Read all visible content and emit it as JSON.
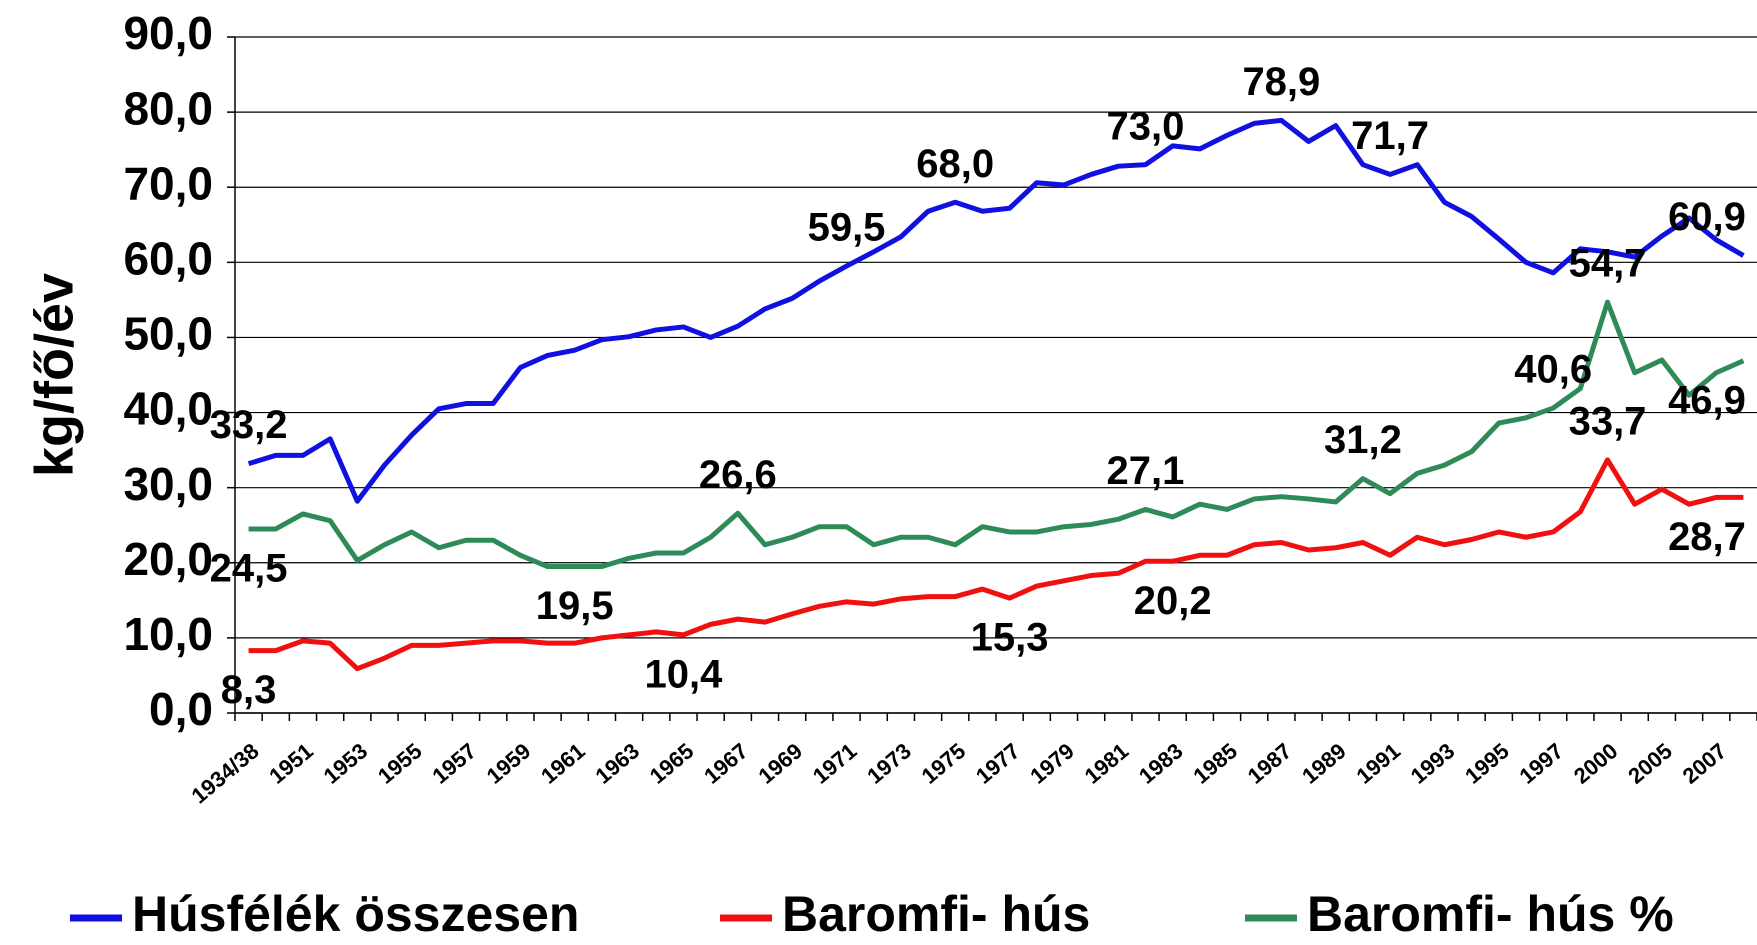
{
  "chart_data": {
    "type": "line",
    "y_label": "kg/fő/év",
    "categories": [
      "1934/38",
      null,
      "1951",
      null,
      "1953",
      null,
      "1955",
      null,
      "1957",
      null,
      "1959",
      null,
      "1961",
      null,
      "1963",
      null,
      "1965",
      null,
      "1967",
      null,
      "1969",
      null,
      "1971",
      null,
      "1973",
      null,
      "1975",
      null,
      "1977",
      null,
      "1979",
      null,
      "1981",
      null,
      "1983",
      null,
      "1985",
      null,
      "1987",
      null,
      "1989",
      null,
      "1991",
      null,
      "1993",
      null,
      "1995",
      null,
      "1997",
      null,
      "2000",
      null,
      "2005",
      null,
      "2007",
      null
    ],
    "ylim": [
      0,
      90
    ],
    "yticks": [
      {
        "value": 0,
        "label": "0,0"
      },
      {
        "value": 10,
        "label": "10,0"
      },
      {
        "value": 20,
        "label": "20,0"
      },
      {
        "value": 30,
        "label": "30,0"
      },
      {
        "value": 40,
        "label": "40,0"
      },
      {
        "value": 50,
        "label": "50,0"
      },
      {
        "value": 60,
        "label": "60,0"
      },
      {
        "value": 70,
        "label": "70,0"
      },
      {
        "value": 80,
        "label": "80,0"
      },
      {
        "value": 90,
        "label": "90,0"
      }
    ],
    "grid": true,
    "legend": "bottom",
    "series": [
      {
        "name": "Húsfélék összesen",
        "color": "#1010e0",
        "values": [
          33.2,
          34.3,
          34.3,
          36.5,
          28.2,
          33.0,
          37.0,
          40.5,
          41.2,
          41.2,
          46.0,
          47.6,
          48.3,
          49.7,
          50.1,
          51.0,
          51.4,
          50.0,
          51.5,
          53.8,
          55.2,
          57.5,
          59.5,
          61.4,
          63.4,
          66.8,
          68.0,
          66.8,
          67.2,
          70.6,
          70.3,
          71.7,
          72.8,
          73.0,
          75.5,
          75.1,
          76.9,
          78.5,
          78.9,
          76.1,
          78.2,
          73.0,
          71.7,
          73.0,
          68.0,
          66.1,
          63.1,
          60.0,
          58.6,
          61.8,
          61.4,
          60.7,
          63.5,
          65.9,
          63.0,
          60.9
        ],
        "value_labels": [
          "33,2",
          null,
          null,
          null,
          null,
          null,
          null,
          null,
          null,
          null,
          null,
          null,
          null,
          null,
          null,
          null,
          null,
          null,
          null,
          null,
          null,
          null,
          "59,5",
          null,
          null,
          null,
          "68,0",
          null,
          null,
          null,
          null,
          null,
          null,
          "73,0",
          null,
          null,
          null,
          null,
          "78,9",
          null,
          null,
          null,
          "71,7",
          null,
          null,
          null,
          null,
          null,
          null,
          null,
          null,
          null,
          null,
          null,
          null,
          "60,9"
        ]
      },
      {
        "name": "Baromfi- hús",
        "color": "#f01010",
        "values": [
          8.3,
          8.3,
          9.6,
          9.3,
          5.9,
          7.3,
          9.0,
          9.0,
          9.3,
          9.6,
          9.6,
          9.3,
          9.3,
          10.0,
          10.4,
          10.8,
          10.4,
          11.8,
          12.5,
          12.1,
          13.2,
          14.2,
          14.8,
          14.5,
          15.2,
          15.5,
          15.5,
          16.5,
          15.3,
          16.9,
          17.6,
          18.3,
          18.6,
          20.2,
          20.2,
          21.0,
          21.0,
          22.4,
          22.7,
          21.7,
          22.0,
          22.7,
          21.0,
          23.4,
          22.4,
          23.1,
          24.1,
          23.4,
          24.1,
          26.8,
          33.7,
          27.8,
          29.8,
          27.8,
          28.7,
          28.7
        ],
        "value_labels": [
          "8,3",
          null,
          null,
          null,
          null,
          null,
          null,
          null,
          null,
          null,
          null,
          null,
          null,
          null,
          null,
          null,
          "10,4",
          null,
          null,
          null,
          null,
          null,
          null,
          null,
          null,
          null,
          null,
          null,
          "15,3",
          null,
          null,
          null,
          null,
          null,
          "20,2",
          null,
          null,
          null,
          null,
          null,
          null,
          null,
          null,
          null,
          null,
          null,
          null,
          null,
          null,
          null,
          "33,7",
          null,
          null,
          null,
          "28,7",
          null
        ]
      },
      {
        "name": "Baromfi- hús %",
        "color": "#2e8b57",
        "values": [
          24.5,
          24.5,
          26.5,
          25.6,
          20.3,
          22.4,
          24.1,
          22.0,
          23.0,
          23.0,
          21.0,
          19.5,
          19.5,
          19.5,
          20.6,
          21.3,
          21.3,
          23.4,
          26.6,
          22.4,
          23.4,
          24.8,
          24.8,
          22.4,
          23.4,
          23.4,
          22.4,
          24.8,
          24.1,
          24.1,
          24.8,
          25.1,
          25.8,
          27.1,
          26.1,
          27.8,
          27.1,
          28.5,
          28.8,
          28.5,
          28.1,
          31.2,
          29.2,
          31.9,
          33.0,
          34.8,
          38.6,
          39.3,
          40.6,
          43.2,
          54.7,
          45.3,
          47.0,
          42.3,
          45.3,
          46.9
        ],
        "value_labels": [
          "24,5",
          null,
          null,
          null,
          null,
          null,
          null,
          null,
          null,
          null,
          null,
          null,
          "19,5",
          null,
          null,
          null,
          null,
          null,
          "26,6",
          null,
          null,
          null,
          null,
          null,
          null,
          null,
          null,
          null,
          null,
          null,
          null,
          null,
          null,
          "27,1",
          null,
          null,
          null,
          null,
          null,
          null,
          null,
          "31,2",
          null,
          null,
          null,
          null,
          null,
          null,
          "40,6",
          null,
          "54,7",
          null,
          null,
          null,
          null,
          "46,9"
        ]
      }
    ]
  }
}
